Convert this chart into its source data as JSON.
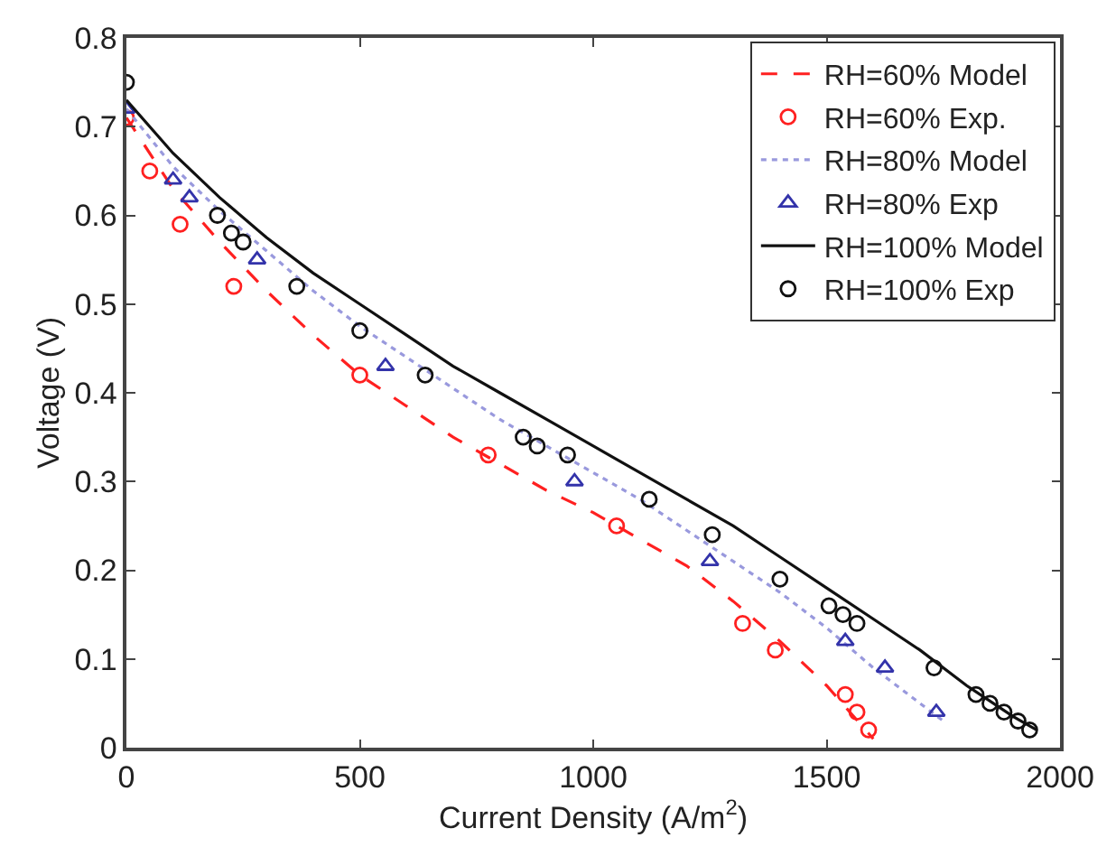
{
  "chart_data": {
    "type": "line",
    "xlabel": "Current Density (A/m$^{2}$)",
    "ylabel": "Voltage (V)",
    "xlim": [
      0,
      2000
    ],
    "xticks": [
      0,
      500,
      1000,
      1500,
      2000
    ],
    "ylim": [
      0,
      0.8
    ],
    "yticks": [
      0,
      0.1,
      0.2,
      0.3,
      0.4,
      0.5,
      0.6,
      0.7,
      0.8
    ],
    "legend": "top right",
    "series": [
      {
        "name": "RH=60% Model",
        "line_style": "dashed",
        "marker": "none",
        "color": "#ff2020",
        "x": [
          0,
          100,
          200,
          300,
          400,
          500,
          600,
          700,
          800,
          900,
          1000,
          1100,
          1200,
          1300,
          1400,
          1500,
          1550,
          1600
        ],
        "values": [
          0.71,
          0.63,
          0.57,
          0.515,
          0.465,
          0.42,
          0.385,
          0.35,
          0.32,
          0.29,
          0.265,
          0.235,
          0.205,
          0.165,
          0.12,
          0.07,
          0.04,
          0.01
        ]
      },
      {
        "name": "RH=60% Exp.",
        "type": "scatter",
        "marker": "circle",
        "color": "#ff2020",
        "x": [
          0,
          50,
          115,
          230,
          500,
          775,
          1050,
          1320,
          1390,
          1540,
          1565,
          1590
        ],
        "values": [
          0.71,
          0.65,
          0.59,
          0.52,
          0.42,
          0.33,
          0.25,
          0.14,
          0.11,
          0.06,
          0.04,
          0.02
        ]
      },
      {
        "name": "RH=80% Model",
        "line_style": "dotted",
        "marker": "none",
        "color": "#9999dd",
        "x": [
          0,
          100,
          200,
          300,
          400,
          500,
          600,
          700,
          800,
          900,
          1000,
          1100,
          1200,
          1300,
          1400,
          1500,
          1600,
          1700,
          1750
        ],
        "values": [
          0.72,
          0.655,
          0.605,
          0.56,
          0.515,
          0.475,
          0.44,
          0.405,
          0.37,
          0.34,
          0.31,
          0.28,
          0.245,
          0.21,
          0.175,
          0.135,
          0.09,
          0.05,
          0.03
        ]
      },
      {
        "name": "RH=80% Exp",
        "type": "scatter",
        "marker": "triangle",
        "color": "#3333aa",
        "x": [
          0,
          100,
          135,
          280,
          555,
          960,
          1250,
          1540,
          1625,
          1735
        ],
        "values": [
          0.72,
          0.64,
          0.62,
          0.55,
          0.43,
          0.3,
          0.21,
          0.12,
          0.09,
          0.04
        ]
      },
      {
        "name": "RH=100% Model",
        "line_style": "solid",
        "marker": "none",
        "color": "#111111",
        "x": [
          0,
          100,
          200,
          300,
          400,
          500,
          600,
          700,
          800,
          900,
          1000,
          1100,
          1200,
          1300,
          1400,
          1500,
          1600,
          1700,
          1800,
          1900,
          1950
        ],
        "values": [
          0.73,
          0.67,
          0.62,
          0.575,
          0.535,
          0.5,
          0.465,
          0.43,
          0.4,
          0.37,
          0.34,
          0.31,
          0.28,
          0.25,
          0.215,
          0.18,
          0.145,
          0.11,
          0.07,
          0.035,
          0.02
        ]
      },
      {
        "name": "RH=100% Exp",
        "type": "scatter",
        "marker": "circle",
        "color": "#111111",
        "x": [
          0,
          195,
          225,
          250,
          365,
          500,
          640,
          850,
          880,
          945,
          1120,
          1255,
          1400,
          1505,
          1535,
          1565,
          1730,
          1820,
          1850,
          1880,
          1910,
          1935
        ],
        "values": [
          0.75,
          0.6,
          0.58,
          0.57,
          0.52,
          0.47,
          0.42,
          0.35,
          0.34,
          0.33,
          0.28,
          0.24,
          0.19,
          0.16,
          0.15,
          0.14,
          0.09,
          0.06,
          0.05,
          0.04,
          0.03,
          0.02
        ]
      }
    ]
  }
}
